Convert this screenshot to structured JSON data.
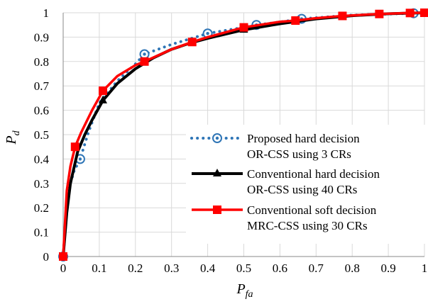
{
  "chart_data": {
    "type": "line",
    "xlabel": "P",
    "xlabel_sub": "fa",
    "ylabel": "P",
    "ylabel_sub": "d",
    "xlim": [
      0,
      1
    ],
    "ylim": [
      0,
      1
    ],
    "x_ticks": [
      0,
      0.1,
      0.2,
      0.3,
      0.4,
      0.5,
      0.6,
      0.7,
      0.8,
      0.9,
      1
    ],
    "y_ticks": [
      0,
      0.1,
      0.2,
      0.3,
      0.4,
      0.5,
      0.6,
      0.7,
      0.8,
      0.9,
      1
    ],
    "x_tick_labels": [
      "0",
      "0.1",
      "0.2",
      "0.3",
      "0.4",
      "0.5",
      "0.6",
      "0.7",
      "0.8",
      "0.9",
      "1"
    ],
    "y_tick_labels": [
      "0",
      "0.1",
      "0.2",
      "0.3",
      "0.4",
      "0.5",
      "0.6",
      "0.7",
      "0.8",
      "0.9",
      "1"
    ],
    "grid": true,
    "legend_position": "bottom-right",
    "series": [
      {
        "name": "Proposed hard decision OR-CSS using 3 CRs",
        "legend_lines": [
          "Proposed hard decision",
          "OR-CSS using 3 CRs"
        ],
        "color": "#2E75B6",
        "line_style": "dotted",
        "marker": "circle-dot",
        "curve": [
          [
            0,
            0
          ],
          [
            0.01,
            0.2
          ],
          [
            0.02,
            0.3
          ],
          [
            0.03,
            0.35
          ],
          [
            0.047,
            0.4
          ],
          [
            0.07,
            0.51
          ],
          [
            0.1,
            0.63
          ],
          [
            0.15,
            0.72
          ],
          [
            0.2,
            0.79
          ],
          [
            0.225,
            0.83
          ],
          [
            0.3,
            0.87
          ],
          [
            0.4,
            0.915
          ],
          [
            0.5,
            0.94
          ],
          [
            0.535,
            0.95
          ],
          [
            0.6,
            0.962
          ],
          [
            0.66,
            0.975
          ],
          [
            0.75,
            0.985
          ],
          [
            0.8,
            0.99
          ],
          [
            0.9,
            0.995
          ],
          [
            0.97,
            0.998
          ],
          [
            1,
            1
          ]
        ],
        "markers": [
          [
            0,
            0
          ],
          [
            0.047,
            0.4
          ],
          [
            0.225,
            0.83
          ],
          [
            0.4,
            0.915
          ],
          [
            0.535,
            0.95
          ],
          [
            0.66,
            0.975
          ],
          [
            0.97,
            0.998
          ]
        ]
      },
      {
        "name": "Conventional hard decision OR-CSS using 40 CRs",
        "legend_lines": [
          "Conventional hard decision",
          "OR-CSS using 40 CRs"
        ],
        "color": "#000000",
        "line_style": "solid",
        "marker": "triangle",
        "curve": [
          [
            0,
            0
          ],
          [
            0.01,
            0.18
          ],
          [
            0.02,
            0.3
          ],
          [
            0.04,
            0.43
          ],
          [
            0.06,
            0.5
          ],
          [
            0.08,
            0.56
          ],
          [
            0.11,
            0.64
          ],
          [
            0.15,
            0.71
          ],
          [
            0.2,
            0.77
          ],
          [
            0.25,
            0.815
          ],
          [
            0.3,
            0.85
          ],
          [
            0.35,
            0.875
          ],
          [
            0.4,
            0.895
          ],
          [
            0.5,
            0.93
          ],
          [
            0.6,
            0.955
          ],
          [
            0.7,
            0.975
          ],
          [
            0.8,
            0.988
          ],
          [
            0.9,
            0.996
          ],
          [
            1,
            1
          ]
        ],
        "markers": [
          [
            0,
            0
          ],
          [
            0.11,
            0.64
          ],
          [
            0.5,
            0.93
          ]
        ]
      },
      {
        "name": "Conventional soft decision MRC-CSS using 30 CRs",
        "legend_lines": [
          "Conventional soft decision",
          "MRC-CSS using 30 CRs"
        ],
        "color": "#FF0000",
        "line_style": "solid",
        "marker": "square",
        "curve": [
          [
            0,
            0
          ],
          [
            0.01,
            0.27
          ],
          [
            0.02,
            0.37
          ],
          [
            0.033,
            0.45
          ],
          [
            0.05,
            0.51
          ],
          [
            0.08,
            0.6
          ],
          [
            0.11,
            0.68
          ],
          [
            0.15,
            0.74
          ],
          [
            0.2,
            0.785
          ],
          [
            0.225,
            0.8
          ],
          [
            0.3,
            0.85
          ],
          [
            0.357,
            0.88
          ],
          [
            0.4,
            0.9
          ],
          [
            0.5,
            0.94
          ],
          [
            0.6,
            0.963
          ],
          [
            0.643,
            0.968
          ],
          [
            0.7,
            0.978
          ],
          [
            0.773,
            0.987
          ],
          [
            0.875,
            0.995
          ],
          [
            0.96,
            0.999
          ],
          [
            1,
            1
          ]
        ],
        "markers": [
          [
            0,
            0
          ],
          [
            0.033,
            0.45
          ],
          [
            0.11,
            0.68
          ],
          [
            0.225,
            0.8
          ],
          [
            0.357,
            0.88
          ],
          [
            0.5,
            0.94
          ],
          [
            0.643,
            0.968
          ],
          [
            0.773,
            0.987
          ],
          [
            0.875,
            0.995
          ],
          [
            0.96,
            0.999
          ],
          [
            1,
            1
          ]
        ]
      }
    ]
  }
}
